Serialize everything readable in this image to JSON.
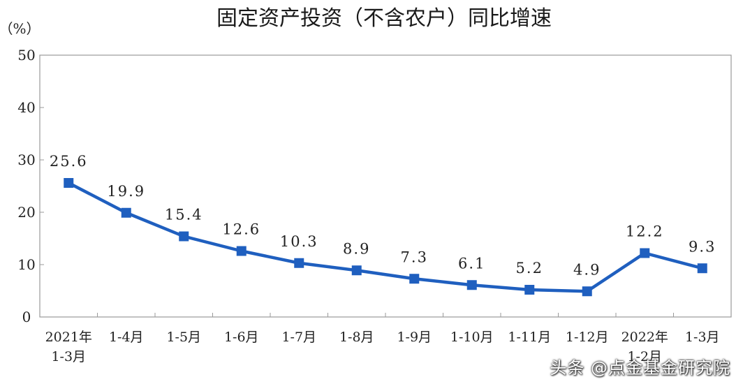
{
  "chart_data": {
    "type": "line",
    "title": "固定资产投资（不含农户）同比增速",
    "ylabel": "（%）",
    "ylim": [
      0,
      50
    ],
    "yticks": [
      "0",
      "10",
      "20",
      "30",
      "40",
      "50"
    ],
    "categories": [
      [
        "2021年",
        "1-3月"
      ],
      [
        "1-4月"
      ],
      [
        "1-5月"
      ],
      [
        "1-6月"
      ],
      [
        "1-7月"
      ],
      [
        "1-8月"
      ],
      [
        "1-9月"
      ],
      [
        "1-10月"
      ],
      [
        "1-11月"
      ],
      [
        "1-12月"
      ],
      [
        "2022年",
        "1-2月"
      ],
      [
        "1-3月"
      ]
    ],
    "values": [
      25.6,
      19.9,
      15.4,
      12.6,
      10.3,
      8.9,
      7.3,
      6.1,
      5.2,
      4.9,
      12.2,
      9.3
    ],
    "labels": [
      "25.6",
      "19.9",
      "15.4",
      "12.6",
      "10.3",
      "8.9",
      "7.3",
      "6.1",
      "5.2",
      "4.9",
      "12.2",
      "9.3"
    ],
    "grid": false,
    "line_color": "#1f5fbf"
  },
  "watermark": "头条 @点金基金研究院"
}
